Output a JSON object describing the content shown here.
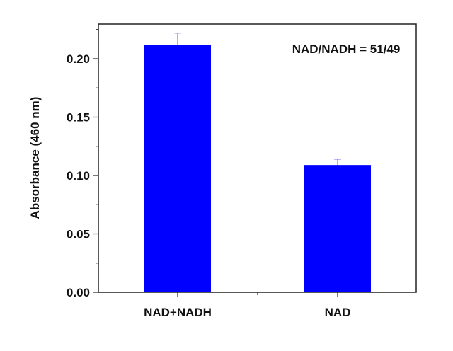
{
  "chart_data": {
    "type": "bar",
    "title": "",
    "annotation": "NAD/NADH = 51/49",
    "xlabel": "",
    "ylabel": "Absorbance (460 nm)",
    "categories": [
      "NAD+NADH",
      "NAD"
    ],
    "values": [
      0.212,
      0.109
    ],
    "errors": [
      0.01,
      0.005
    ],
    "ylim": [
      0,
      0.229
    ],
    "yticks": [
      "0.00",
      "0.05",
      "0.10",
      "0.15",
      "0.20"
    ],
    "grid": false,
    "legend": null,
    "bar_color": "#0000FF",
    "error_color": "#7777EE"
  }
}
